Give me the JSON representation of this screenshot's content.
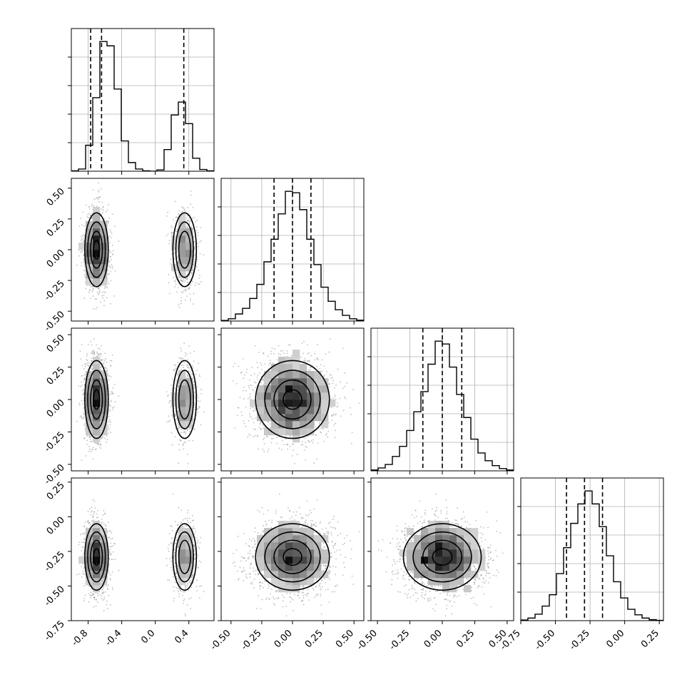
{
  "chart_data": {
    "type": "corner",
    "title": "",
    "parameters": 4,
    "ranges": [
      [
        -1.0,
        0.7
      ],
      [
        -0.58,
        0.58
      ],
      [
        -0.55,
        0.55
      ],
      [
        -0.75,
        0.28
      ]
    ],
    "tick_labels": [
      [
        "-0.8",
        "-0.4",
        "0.0",
        "0.4"
      ],
      [
        "-0.50",
        "-0.25",
        "0.00",
        "0.25",
        "0.50"
      ],
      [
        "-0.50",
        "-0.25",
        "0.00",
        "0.25",
        "0.50"
      ],
      [
        "-0.75",
        "-0.50",
        "-0.25",
        "0.00",
        "0.25"
      ]
    ],
    "tick_values": [
      [
        -0.8,
        -0.4,
        0.0,
        0.4
      ],
      [
        -0.5,
        -0.25,
        0.0,
        0.25,
        0.5
      ],
      [
        -0.5,
        -0.25,
        0.0,
        0.25,
        0.5
      ],
      [
        -0.75,
        -0.5,
        -0.25,
        0.0,
        0.25
      ]
    ],
    "grid": true,
    "quantiles": [
      [
        -0.77,
        -0.64,
        0.34
      ],
      [
        -0.15,
        0.0,
        0.15
      ],
      [
        -0.15,
        0.0,
        0.15
      ],
      [
        -0.42,
        -0.29,
        -0.16
      ]
    ],
    "distributions": [
      {
        "components": [
          {
            "weight": 0.68,
            "mean": -0.7,
            "sd": 0.07
          },
          {
            "weight": 0.32,
            "mean": 0.35,
            "sd": 0.07
          }
        ]
      },
      {
        "components": [
          {
            "weight": 1.0,
            "mean": 0.0,
            "sd": 0.15
          }
        ]
      },
      {
        "components": [
          {
            "weight": 1.0,
            "mean": 0.0,
            "sd": 0.15
          }
        ]
      },
      {
        "components": [
          {
            "weight": 1.0,
            "mean": -0.29,
            "sd": 0.12
          }
        ]
      }
    ],
    "histograms": [
      {
        "bins": 20,
        "range": [
          -1.0,
          0.7
        ],
        "counts": [
          1,
          5,
          60,
          170,
          300,
          290,
          190,
          70,
          20,
          5,
          1,
          0,
          3,
          50,
          130,
          160,
          110,
          30,
          4,
          1
        ]
      },
      {
        "bins": 20,
        "range": [
          -0.58,
          0.58
        ],
        "counts": [
          2,
          8,
          25,
          45,
          80,
          130,
          210,
          290,
          380,
          460,
          455,
          395,
          290,
          200,
          120,
          70,
          40,
          20,
          8,
          3
        ]
      },
      {
        "bins": 20,
        "range": [
          -0.55,
          0.55
        ],
        "counts": [
          3,
          10,
          22,
          50,
          85,
          140,
          205,
          275,
          370,
          450,
          440,
          360,
          265,
          185,
          110,
          62,
          35,
          18,
          8,
          3
        ]
      },
      {
        "bins": 20,
        "range": [
          -0.75,
          0.28
        ],
        "counts": [
          2,
          8,
          20,
          45,
          80,
          145,
          225,
          300,
          360,
          400,
          360,
          290,
          200,
          120,
          70,
          35,
          18,
          8,
          3,
          1
        ]
      }
    ]
  }
}
